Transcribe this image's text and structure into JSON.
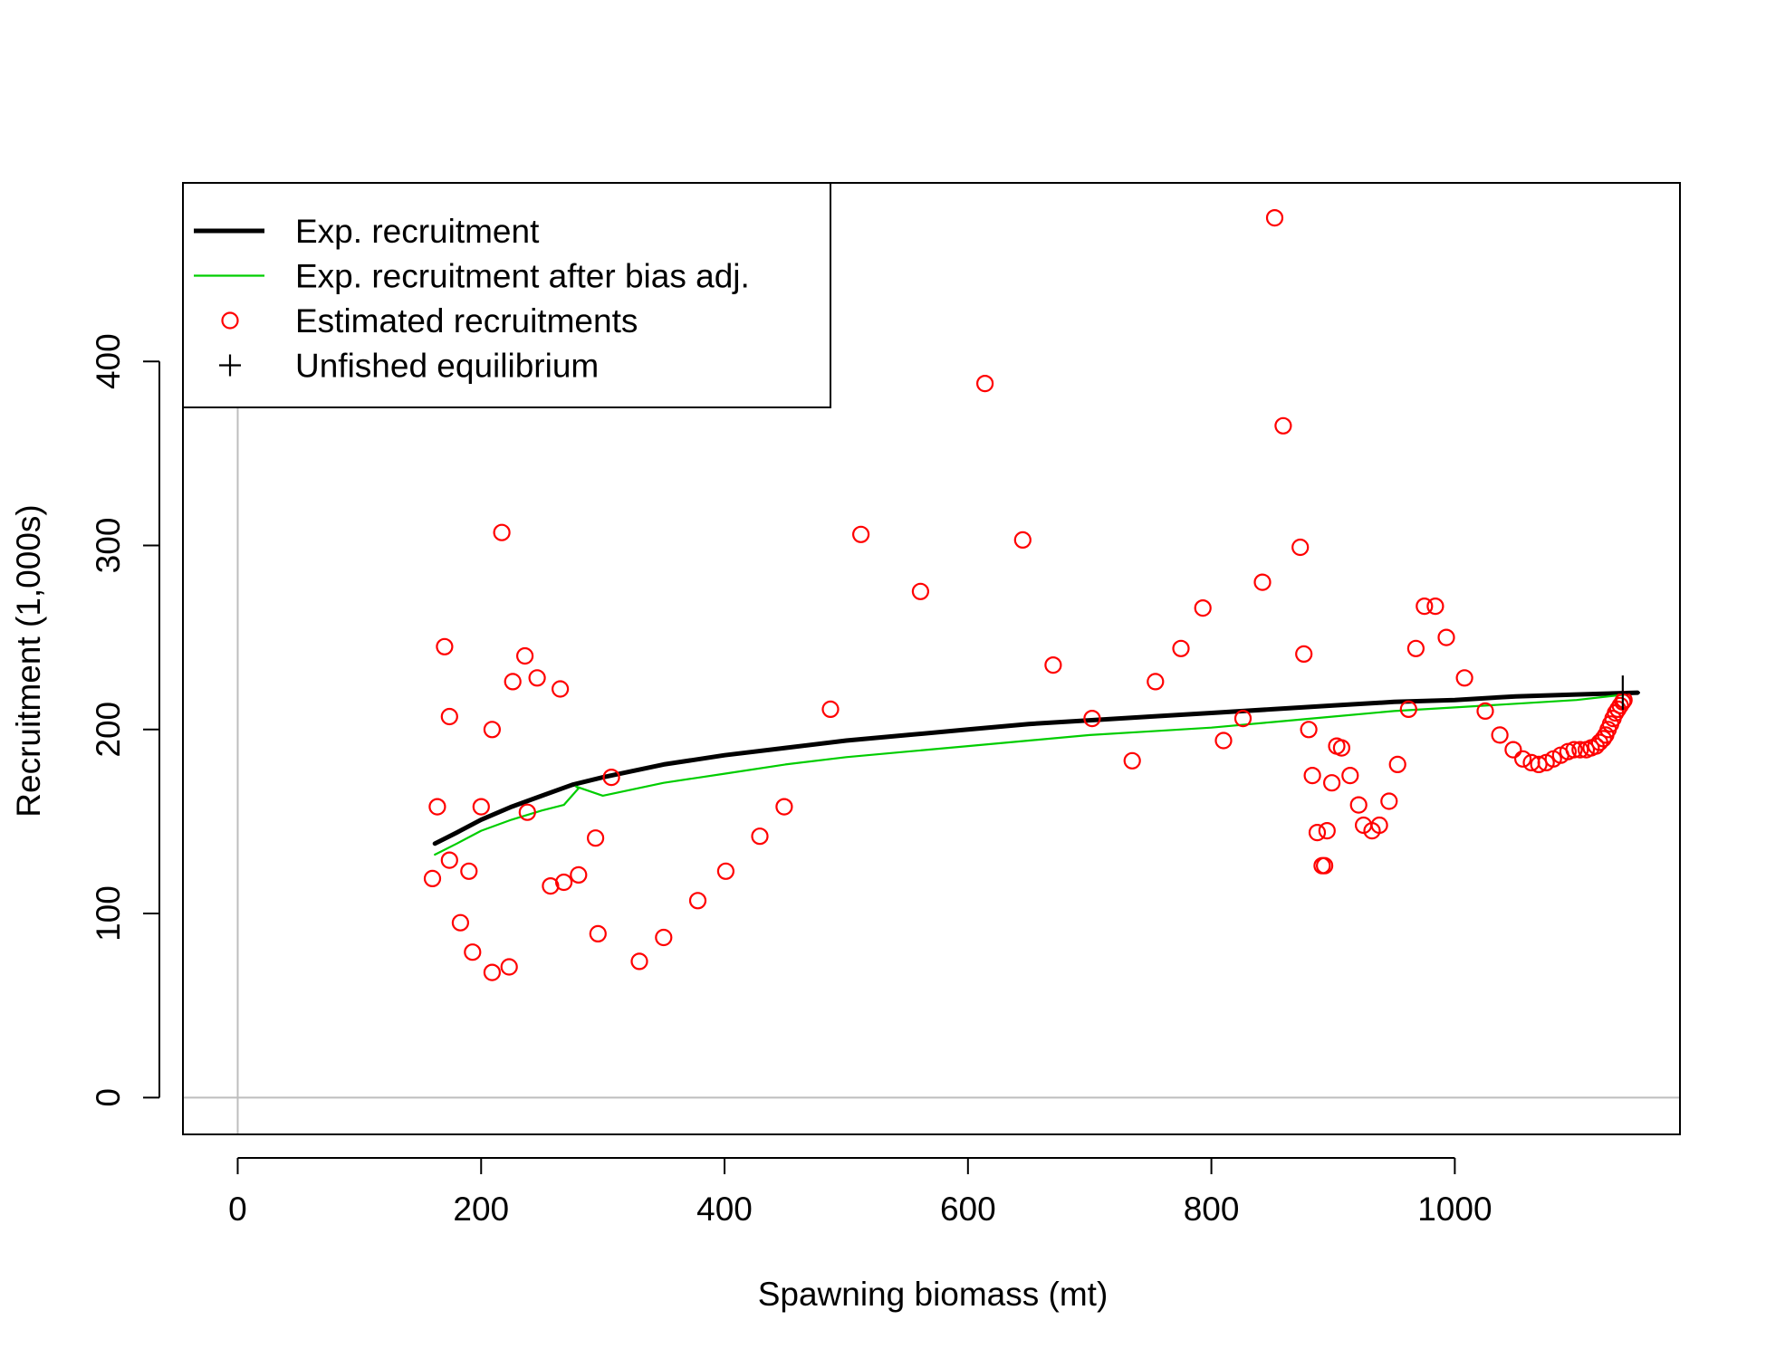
{
  "chart_data": {
    "type": "scatter",
    "title": "",
    "xlabel": "Spawning biomass (mt)",
    "ylabel": "Recruitment (1,000s)",
    "xlim": [
      -45,
      1185
    ],
    "ylim": [
      -20,
      497
    ],
    "x_ticks": [
      0,
      200,
      400,
      600,
      800,
      1000
    ],
    "x_tick_labels": [
      "0",
      "200",
      "400",
      "600",
      "800",
      "1000"
    ],
    "y_ticks": [
      0,
      100,
      200,
      300,
      400
    ],
    "y_tick_labels": [
      "0",
      "100",
      "200",
      "300",
      "400"
    ],
    "grid": false,
    "reference_lines": {
      "x": 0,
      "y": 0,
      "color": "#bebebe"
    },
    "legend": {
      "position": "top-left",
      "entries": [
        {
          "label": "Exp. recruitment",
          "kind": "line",
          "color": "#000000",
          "style": "thick"
        },
        {
          "label": "Exp. recruitment after bias adj.",
          "kind": "line",
          "color": "#00cd00",
          "style": "thin"
        },
        {
          "label": "Estimated recruitments",
          "kind": "circle",
          "color": "#ff0000"
        },
        {
          "label": "Unfished equilibrium",
          "kind": "cross",
          "color": "#000000"
        }
      ]
    },
    "series": [
      {
        "name": "Exp. recruitment",
        "kind": "line",
        "color": "#000000",
        "x": [
          162,
          180,
          200,
          225,
          250,
          275,
          300,
          350,
          400,
          450,
          500,
          550,
          600,
          650,
          700,
          750,
          800,
          850,
          900,
          950,
          1000,
          1050,
          1100,
          1150
        ],
        "y": [
          138,
          144,
          151,
          158,
          164,
          170,
          174,
          181,
          186,
          190,
          194,
          197,
          200,
          203,
          205,
          207,
          209,
          211,
          213,
          215,
          216,
          218,
          219,
          220
        ]
      },
      {
        "name": "Exp. recruitment after bias adj.",
        "kind": "line",
        "color": "#00cd00",
        "x": [
          162,
          180,
          200,
          225,
          250,
          268,
          280,
          278,
          300,
          350,
          400,
          450,
          500,
          550,
          600,
          650,
          700,
          750,
          800,
          850,
          900,
          950,
          1000,
          1050,
          1100,
          1140
        ],
        "y": [
          132,
          138,
          145,
          151,
          156,
          159,
          168,
          169,
          164,
          171,
          176,
          181,
          185,
          188,
          191,
          194,
          197,
          199,
          201,
          204,
          207,
          210,
          212,
          214,
          216,
          219
        ]
      },
      {
        "name": "Estimated recruitments",
        "kind": "circle",
        "color": "#ff0000",
        "x": [
          160,
          164,
          170,
          174,
          174,
          183,
          190,
          193,
          200,
          209,
          209,
          217,
          223,
          226,
          236,
          238,
          246,
          257,
          265,
          268,
          280,
          294,
          296,
          307,
          330,
          350,
          378,
          401,
          429,
          449,
          487,
          512,
          561,
          614,
          645,
          670,
          702,
          735,
          754,
          775,
          793,
          810,
          826,
          842,
          852,
          859,
          873,
          876,
          880,
          883,
          887,
          891,
          893,
          895,
          899,
          903,
          907,
          914,
          921,
          925,
          932,
          938,
          946,
          953,
          962,
          968,
          975,
          984,
          993,
          1008,
          1025,
          1037,
          1048,
          1056,
          1063,
          1069,
          1075,
          1081,
          1087,
          1093,
          1098,
          1103,
          1108,
          1112,
          1116,
          1119,
          1122,
          1124,
          1126,
          1128,
          1130,
          1132,
          1134,
          1136,
          1138,
          1139
        ],
        "y": [
          119,
          158,
          245,
          129,
          207,
          95,
          123,
          79,
          158,
          200,
          68,
          307,
          71,
          226,
          240,
          155,
          228,
          115,
          222,
          117,
          121,
          141,
          89,
          174,
          74,
          87,
          107,
          123,
          142,
          158,
          211,
          306,
          275,
          388,
          303,
          235,
          206,
          183,
          226,
          244,
          266,
          194,
          206,
          280,
          478,
          365,
          299,
          241,
          200,
          175,
          144,
          126,
          126,
          145,
          171,
          191,
          190,
          175,
          159,
          148,
          145,
          148,
          161,
          181,
          211,
          244,
          267,
          267,
          250,
          228,
          210,
          197,
          189,
          184,
          182,
          181,
          182,
          184,
          186,
          188,
          189,
          189,
          189,
          190,
          191,
          193,
          195,
          197,
          200,
          203,
          206,
          209,
          211,
          213,
          215,
          216
        ]
      },
      {
        "name": "Unfished equilibrium",
        "kind": "cross",
        "color": "#000000",
        "x": [
          1138
        ],
        "y": [
          220
        ]
      }
    ]
  }
}
